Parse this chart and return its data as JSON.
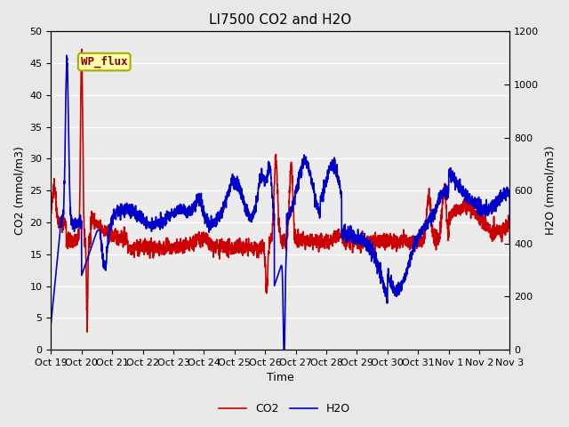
{
  "title": "LI7500 CO2 and H2O",
  "xlabel": "Time",
  "ylabel_left": "CO2 (mmol/m3)",
  "ylabel_right": "H2O (mmol/m3)",
  "xlim": [
    0,
    15
  ],
  "ylim_left": [
    0,
    50
  ],
  "ylim_right": [
    0,
    1200
  ],
  "xtick_labels": [
    "Oct 19",
    "Oct 20",
    "Oct 21",
    "Oct 22",
    "Oct 23",
    "Oct 24",
    "Oct 25",
    "Oct 26",
    "Oct 27",
    "Oct 28",
    "Oct 29",
    "Oct 30",
    "Oct 31",
    "Nov 1",
    "Nov 2",
    "Nov 3"
  ],
  "co2_color": "#cc0000",
  "h2o_color": "#0000cc",
  "legend_label_co2": "CO2",
  "legend_label_h2o": "H2O",
  "annotation_text": "WP_flux",
  "background_color": "#e8e8e8",
  "plot_bg_color": "#ebebeb",
  "grid_color": "#c8c8c8",
  "title_fontsize": 11,
  "axis_fontsize": 9,
  "tick_fontsize": 8,
  "legend_fontsize": 9,
  "linewidth": 1.2
}
